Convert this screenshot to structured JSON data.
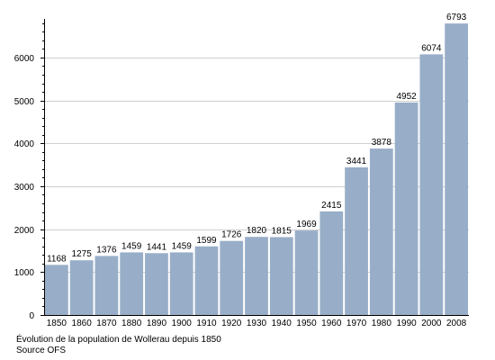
{
  "chart_data": {
    "type": "bar",
    "categories": [
      "1850",
      "1860",
      "1870",
      "1880",
      "1890",
      "1900",
      "1910",
      "1920",
      "1930",
      "1940",
      "1950",
      "1960",
      "1970",
      "1980",
      "1990",
      "2000",
      "2008"
    ],
    "values": [
      1168,
      1275,
      1376,
      1459,
      1441,
      1459,
      1599,
      1726,
      1820,
      1815,
      1969,
      2415,
      3441,
      3878,
      4952,
      6074,
      6793
    ],
    "ylim": [
      0,
      6900
    ],
    "yticks": [
      0,
      1000,
      2000,
      3000,
      4000,
      5000,
      6000
    ],
    "grid": true,
    "bar_color": "#98aec8",
    "title": "",
    "xlabel": "",
    "ylabel": ""
  },
  "caption": {
    "line1": "Évolution de la population de Wollerau depuis 1850",
    "line2": "Source OFS"
  }
}
